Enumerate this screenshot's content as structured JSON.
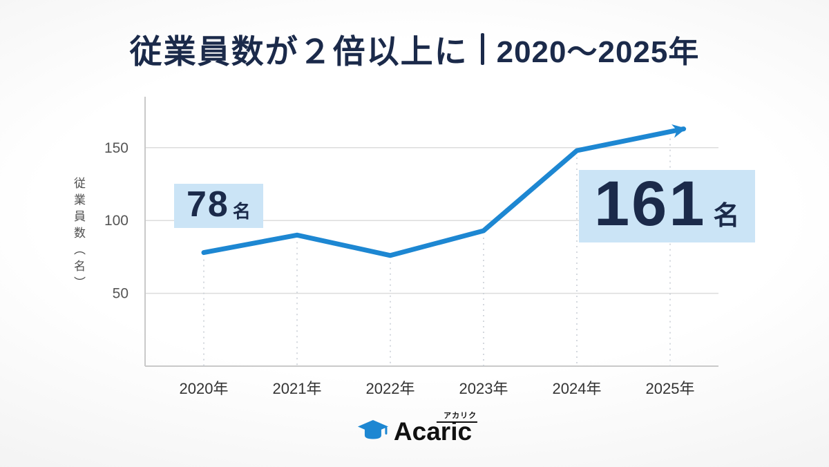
{
  "title": {
    "main": "従業員数が２倍以上に",
    "range": "2020〜2025年"
  },
  "colors": {
    "title": "#1b2a4a",
    "line": "#1d87d2",
    "highlight": "#cbe4f6",
    "logo": "#1d87d2",
    "axis": "#c9c9c9",
    "grid": "#dcdcdc",
    "tick_text": "#555555",
    "xlabel_text": "#333333"
  },
  "chart_data": {
    "type": "line",
    "x": [
      "2020年",
      "2021年",
      "2022年",
      "2023年",
      "2024年",
      "2025年"
    ],
    "series": [
      {
        "name": "従業員数",
        "values": [
          78,
          90,
          76,
          93,
          148,
          161
        ]
      }
    ],
    "ylabel": "従業員数（名）",
    "yticks": [
      50,
      100,
      150
    ],
    "ylim": [
      0,
      185
    ],
    "grid": true,
    "legend": false,
    "arrow_end": true,
    "annotations": [
      {
        "value": "78",
        "unit": "名",
        "target": "2020年"
      },
      {
        "value": "161",
        "unit": "名",
        "target": "2025年"
      }
    ]
  },
  "footer": {
    "brand": "Acaric",
    "brand_kana": "アカリク"
  }
}
